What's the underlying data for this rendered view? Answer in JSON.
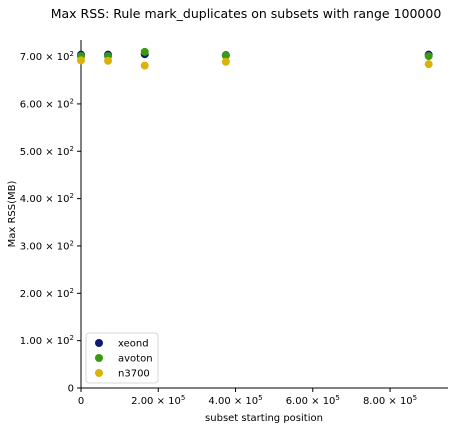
{
  "chart_data": {
    "type": "scatter",
    "title": "Max RSS: Rule mark_duplicates on subsets with range 100000",
    "xlabel": "subset starting position",
    "ylabel": "Max RSS(MB)",
    "xlim": [
      0,
      950000
    ],
    "ylim": [
      0,
      735
    ],
    "x_ticks": [
      {
        "value": 0,
        "label": "0"
      },
      {
        "value": 200000,
        "base": "2.00 × 10",
        "exp": "5"
      },
      {
        "value": 400000,
        "base": "4.00 × 10",
        "exp": "5"
      },
      {
        "value": 600000,
        "base": "6.00 × 10",
        "exp": "5"
      },
      {
        "value": 800000,
        "base": "8.00 × 10",
        "exp": "5"
      }
    ],
    "y_ticks": [
      {
        "value": 0,
        "label": "0"
      },
      {
        "value": 100,
        "base": "1.00 × 10",
        "exp": "2"
      },
      {
        "value": 200,
        "base": "2.00 × 10",
        "exp": "2"
      },
      {
        "value": 300,
        "base": "3.00 × 10",
        "exp": "2"
      },
      {
        "value": 400,
        "base": "4.00 × 10",
        "exp": "2"
      },
      {
        "value": 500,
        "base": "5.00 × 10",
        "exp": "2"
      },
      {
        "value": 600,
        "base": "6.00 × 10",
        "exp": "2"
      },
      {
        "value": 700,
        "base": "7.00 × 10",
        "exp": "2"
      }
    ],
    "series": [
      {
        "name": "xeond",
        "color": "#0d1b6e",
        "points": [
          [
            0,
            704
          ],
          [
            70000,
            704
          ],
          [
            165000,
            705
          ],
          [
            375000,
            703
          ],
          [
            900000,
            704
          ]
        ]
      },
      {
        "name": "avoton",
        "color": "#3a9b13",
        "points": [
          [
            0,
            701
          ],
          [
            70000,
            701
          ],
          [
            165000,
            710
          ],
          [
            375000,
            702
          ],
          [
            900000,
            701
          ]
        ]
      },
      {
        "name": "n3700",
        "color": "#d9b20e",
        "points": [
          [
            0,
            692
          ],
          [
            70000,
            691
          ],
          [
            165000,
            681
          ],
          [
            375000,
            689
          ],
          [
            900000,
            684
          ]
        ]
      }
    ],
    "legend": "lower-left",
    "grid": false
  }
}
